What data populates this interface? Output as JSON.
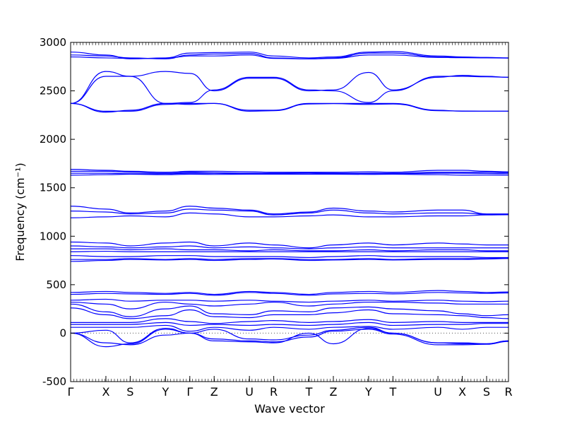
{
  "chart_data": {
    "type": "line",
    "xlabel": "Wave vector",
    "ylabel": "Frequency (cm⁻¹)",
    "ylim": [
      -500,
      3000
    ],
    "yticks": [
      -500,
      0,
      500,
      1000,
      1500,
      2000,
      2500,
      3000
    ],
    "xlim": [
      0,
      18
    ],
    "grid": false,
    "legend": "none",
    "kpoints": [
      {
        "label": "Γ",
        "x": 0
      },
      {
        "label": "X",
        "x": 1.45
      },
      {
        "label": "S",
        "x": 2.45
      },
      {
        "label": "Y",
        "x": 3.9
      },
      {
        "label": "Γ",
        "x": 4.9
      },
      {
        "label": "Z",
        "x": 5.9
      },
      {
        "label": "U",
        "x": 7.35
      },
      {
        "label": "R",
        "x": 8.35
      },
      {
        "label": "T",
        "x": 9.8
      },
      {
        "label": "Z",
        "x": 10.8
      },
      {
        "label": "Y",
        "x": 12.25
      },
      {
        "label": "T",
        "x": 13.25
      },
      {
        "label": "U",
        "x": 15.1
      },
      {
        "label": "X",
        "x": 16.1
      },
      {
        "label": "S",
        "x": 17.1
      },
      {
        "label": "R",
        "x": 18
      }
    ],
    "line_color": "#0000ff",
    "zero_line_color": "#555555",
    "series": [
      {
        "values": [
          2900,
          2870,
          2830,
          2840,
          2890,
          2895,
          2900,
          2860,
          2840,
          2850,
          2900,
          2905,
          2860,
          2850,
          2845,
          2840
        ]
      },
      {
        "values": [
          2870,
          2860,
          2840,
          2830,
          2870,
          2880,
          2885,
          2840,
          2830,
          2840,
          2890,
          2890,
          2850,
          2845,
          2842,
          2840
        ]
      },
      {
        "values": [
          2850,
          2840,
          2835,
          2835,
          2860,
          2860,
          2870,
          2835,
          2830,
          2835,
          2870,
          2870,
          2845,
          2842,
          2840,
          2838
        ]
      },
      {
        "values": [
          2370,
          2700,
          2650,
          2700,
          2680,
          2500,
          2630,
          2630,
          2500,
          2510,
          2690,
          2510,
          2640,
          2660,
          2650,
          2640
        ]
      },
      {
        "values": [
          2370,
          2650,
          2650,
          2370,
          2380,
          2510,
          2640,
          2640,
          2510,
          2500,
          2380,
          2500,
          2650,
          2650,
          2645,
          2640
        ]
      },
      {
        "values": [
          2370,
          2290,
          2290,
          2360,
          2370,
          2370,
          2300,
          2300,
          2370,
          2370,
          2370,
          2370,
          2300,
          2290,
          2290,
          2290
        ]
      },
      {
        "values": [
          2370,
          2280,
          2300,
          2370,
          2360,
          2370,
          2290,
          2295,
          2365,
          2368,
          2360,
          2365,
          2295,
          2292,
          2290,
          2290
        ]
      },
      {
        "values": [
          1690,
          1680,
          1670,
          1660,
          1670,
          1670,
          1665,
          1660,
          1660,
          1660,
          1665,
          1660,
          1680,
          1680,
          1670,
          1665
        ]
      },
      {
        "values": [
          1670,
          1670,
          1660,
          1650,
          1660,
          1655,
          1650,
          1650,
          1655,
          1650,
          1650,
          1650,
          1660,
          1660,
          1660,
          1655
        ]
      },
      {
        "values": [
          1650,
          1650,
          1645,
          1645,
          1650,
          1650,
          1645,
          1645,
          1645,
          1648,
          1645,
          1645,
          1650,
          1650,
          1648,
          1645
        ]
      },
      {
        "values": [
          1630,
          1635,
          1640,
          1635,
          1640,
          1638,
          1640,
          1640,
          1640,
          1640,
          1638,
          1640,
          1635,
          1630,
          1632,
          1630
        ]
      },
      {
        "values": [
          1310,
          1280,
          1240,
          1260,
          1310,
          1290,
          1270,
          1230,
          1250,
          1290,
          1260,
          1250,
          1270,
          1270,
          1230,
          1230
        ]
      },
      {
        "values": [
          1260,
          1250,
          1230,
          1240,
          1280,
          1270,
          1260,
          1220,
          1240,
          1270,
          1240,
          1230,
          1240,
          1240,
          1225,
          1225
        ]
      },
      {
        "values": [
          1190,
          1200,
          1210,
          1200,
          1240,
          1230,
          1200,
          1200,
          1210,
          1220,
          1200,
          1200,
          1210,
          1210,
          1220,
          1222
        ]
      },
      {
        "values": [
          940,
          930,
          900,
          930,
          940,
          900,
          930,
          910,
          880,
          910,
          930,
          910,
          930,
          920,
          910,
          910
        ]
      },
      {
        "values": [
          900,
          890,
          880,
          890,
          900,
          880,
          890,
          880,
          870,
          880,
          890,
          880,
          880,
          880,
          880,
          880
        ]
      },
      {
        "values": [
          870,
          870,
          860,
          870,
          860,
          860,
          850,
          860,
          850,
          850,
          860,
          850,
          860,
          860,
          850,
          850
        ]
      },
      {
        "values": [
          840,
          845,
          840,
          840,
          840,
          840,
          840,
          840,
          840,
          840,
          840,
          840,
          840,
          840,
          840,
          840
        ]
      },
      {
        "values": [
          800,
          790,
          790,
          800,
          800,
          790,
          790,
          790,
          780,
          790,
          800,
          790,
          790,
          790,
          780,
          780
        ]
      },
      {
        "values": [
          760,
          760,
          770,
          760,
          770,
          760,
          770,
          770,
          760,
          760,
          770,
          760,
          770,
          770,
          770,
          775
        ]
      },
      {
        "values": [
          740,
          750,
          760,
          755,
          760,
          750,
          760,
          765,
          750,
          755,
          760,
          755,
          760,
          760,
          765,
          770
        ]
      },
      {
        "values": [
          420,
          430,
          420,
          410,
          420,
          400,
          430,
          420,
          400,
          420,
          430,
          420,
          440,
          430,
          420,
          425
        ]
      },
      {
        "values": [
          400,
          410,
          405,
          400,
          410,
          390,
          420,
          410,
          390,
          405,
          410,
          405,
          420,
          415,
          410,
          415
        ]
      },
      {
        "values": [
          340,
          350,
          330,
          340,
          340,
          330,
          340,
          330,
          320,
          330,
          340,
          330,
          340,
          330,
          325,
          330
        ]
      },
      {
        "values": [
          320,
          300,
          250,
          320,
          300,
          280,
          300,
          320,
          280,
          300,
          320,
          320,
          310,
          300,
          300,
          300
        ]
      },
      {
        "values": [
          300,
          220,
          170,
          250,
          280,
          200,
          190,
          230,
          220,
          260,
          270,
          250,
          230,
          200,
          180,
          190
        ]
      },
      {
        "values": [
          260,
          190,
          150,
          180,
          240,
          170,
          160,
          190,
          190,
          210,
          240,
          200,
          190,
          180,
          160,
          150
        ]
      },
      {
        "values": [
          110,
          110,
          110,
          150,
          120,
          100,
          120,
          130,
          110,
          120,
          140,
          110,
          120,
          110,
          110,
          110
        ]
      },
      {
        "values": [
          90,
          90,
          90,
          110,
          80,
          90,
          80,
          90,
          80,
          90,
          110,
          80,
          90,
          90,
          100,
          100
        ]
      },
      {
        "values": [
          60,
          60,
          60,
          80,
          20,
          60,
          30,
          60,
          40,
          60,
          70,
          40,
          60,
          40,
          60,
          60
        ]
      },
      {
        "values": [
          0,
          30,
          -100,
          50,
          0,
          40,
          -60,
          -70,
          -20,
          30,
          60,
          0,
          -100,
          -110,
          -110,
          -80
        ]
      },
      {
        "values": [
          0,
          -100,
          -120,
          -20,
          0,
          -60,
          -80,
          -90,
          -40,
          20,
          40,
          -10,
          -120,
          -120,
          -115,
          -85
        ]
      },
      {
        "values": [
          0,
          -140,
          -110,
          40,
          0,
          -80,
          -90,
          -100,
          0,
          -110,
          50,
          0,
          -100,
          -100,
          -110,
          -80
        ]
      }
    ]
  }
}
